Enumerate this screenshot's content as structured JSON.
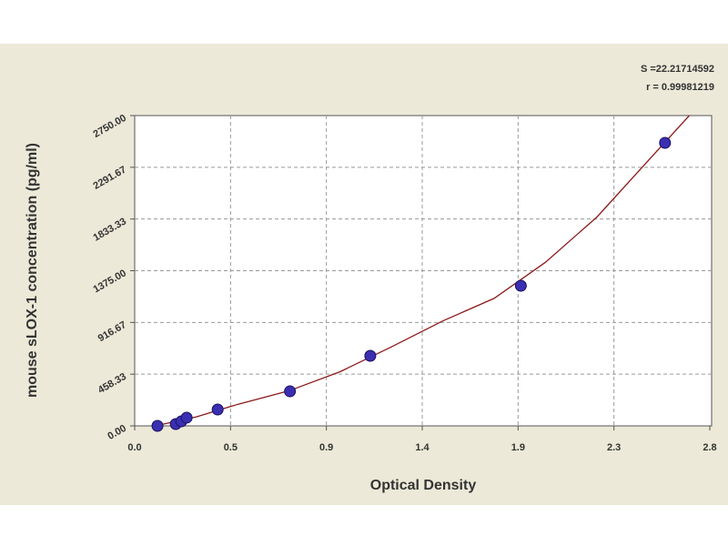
{
  "chart_data": {
    "type": "scatter",
    "x_label": "Optical Density",
    "y_label": "mouse sLOX-1 concentration (pg/ml)",
    "annotations": [
      "S =22.21714592",
      "r = 0.99981219"
    ],
    "x": [
      0.111,
      0.2,
      0.227,
      0.253,
      0.404,
      0.756,
      1.147,
      1.88,
      2.582
    ],
    "values": [
      0,
      16,
      40,
      73,
      145,
      306,
      621,
      1242,
      2508
    ],
    "color": "#3a2fb0",
    "fit_curve": {
      "x": [
        0.1,
        0.3,
        0.5,
        0.75,
        1.0,
        1.25,
        1.5,
        1.75,
        2.0,
        2.25,
        2.5,
        2.7
      ],
      "values": [
        0,
        80,
        190,
        310,
        480,
        700,
        930,
        1130,
        1450,
        1850,
        2350,
        2750
      ],
      "color": "#8b1a1a"
    },
    "xlim": [
      0,
      2.8
    ],
    "ylim": [
      0,
      2750
    ],
    "xticks": [
      {
        "value": 0,
        "label": "0.0"
      },
      {
        "value": 0.4667,
        "label": "0.5"
      },
      {
        "value": 0.9333,
        "label": "0.9"
      },
      1.4,
      {
        "value": 1.8667,
        "label": "1.9"
      },
      {
        "value": 2.3333,
        "label": "2.3"
      },
      2.8
    ],
    "yticks": [
      {
        "value": 0,
        "label": "0.00"
      },
      458.33,
      916.67,
      {
        "value": 1375,
        "label": "1375.00"
      },
      1833.33,
      2291.67,
      {
        "value": 2750,
        "label": "2750.00"
      }
    ],
    "grid": true
  }
}
